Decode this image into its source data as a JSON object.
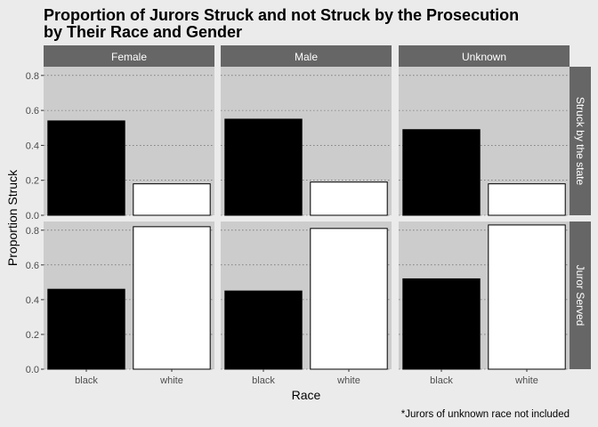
{
  "chart_data": {
    "type": "bar",
    "title_lines": [
      "Proportion of Jurors Struck and not Struck by the Prosecution",
      "by Their Race and Gender"
    ],
    "xlabel": "Race",
    "ylabel": "Proportion Struck",
    "caption": "*Jurors of unknown race not included",
    "categories": [
      "black",
      "white"
    ],
    "facet_columns": [
      "Female",
      "Male",
      "Unknown"
    ],
    "facet_rows": [
      "Struck by the state",
      "Juror Served"
    ],
    "ylim": [
      0,
      0.85
    ],
    "yticks": [
      0.0,
      0.2,
      0.4,
      0.6,
      0.8
    ],
    "ytick_labels": [
      "0.0",
      "0.2",
      "0.4",
      "0.6",
      "0.8"
    ],
    "fills": {
      "black": "#000000",
      "white": "#ffffff"
    },
    "panel_background": "#cccccc",
    "strip_background": "#666666",
    "grid": "dotted-horizontal",
    "panels": [
      {
        "row": "Struck by the state",
        "column": "Female",
        "values": [
          0.54,
          0.18
        ]
      },
      {
        "row": "Struck by the state",
        "column": "Male",
        "values": [
          0.55,
          0.19
        ]
      },
      {
        "row": "Struck by the state",
        "column": "Unknown",
        "values": [
          0.49,
          0.18
        ]
      },
      {
        "row": "Juror Served",
        "column": "Female",
        "values": [
          0.46,
          0.82
        ]
      },
      {
        "row": "Juror Served",
        "column": "Male",
        "values": [
          0.45,
          0.81
        ]
      },
      {
        "row": "Juror Served",
        "column": "Unknown",
        "values": [
          0.52,
          0.83
        ]
      }
    ]
  }
}
